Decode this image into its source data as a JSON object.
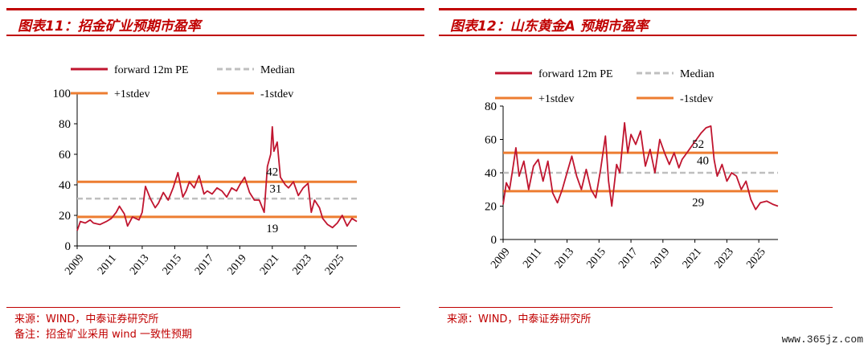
{
  "panels": [
    {
      "title": "图表11：招金矿业预期市盈率",
      "notes": [
        "来源：WIND，中泰证券研究所",
        "备注：招金矿业采用 wind 一致性预期"
      ],
      "legend": {
        "pe": "forward 12m PE",
        "median": "Median",
        "plus": "+1stdev",
        "minus": "-1stdev"
      },
      "colors": {
        "pe": "#c0152f",
        "median": "#bfbfbf",
        "band": "#ed7d31"
      }
    },
    {
      "title": "图表12：山东黄金A 预期市盈率",
      "notes": [
        "来源：WIND，中泰证券研究所"
      ],
      "legend": {
        "pe": "forward 12m PE",
        "median": "Median",
        "plus": "+1stdev",
        "minus": "-1stdev"
      },
      "colors": {
        "pe": "#c0152f",
        "median": "#bfbfbf",
        "band": "#ed7d31"
      }
    }
  ],
  "watermark": "www.365jz.com",
  "chart_data": [
    {
      "type": "line",
      "title": "图表11：招金矿业预期市盈率",
      "xlim": [
        2009,
        2026.2
      ],
      "ylim": [
        0,
        100
      ],
      "yticks": [
        0,
        20,
        40,
        60,
        80,
        100
      ],
      "xticks": [
        "2009",
        "2011",
        "2013",
        "2015",
        "2017",
        "2019",
        "2021",
        "2023",
        "2025"
      ],
      "series": [
        {
          "name": "forward 12m PE",
          "x": [
            2009.0,
            2009.2,
            2009.5,
            2009.8,
            2010.0,
            2010.4,
            2010.8,
            2011.1,
            2011.4,
            2011.6,
            2011.9,
            2012.1,
            2012.4,
            2012.8,
            2013.0,
            2013.2,
            2013.5,
            2013.8,
            2014.0,
            2014.3,
            2014.6,
            2014.9,
            2015.2,
            2015.5,
            2015.7,
            2015.9,
            2016.2,
            2016.5,
            2016.8,
            2017.0,
            2017.3,
            2017.6,
            2017.9,
            2018.2,
            2018.5,
            2018.8,
            2019.0,
            2019.3,
            2019.6,
            2019.9,
            2020.2,
            2020.5,
            2020.7,
            2020.9,
            2021.0,
            2021.1,
            2021.3,
            2021.5,
            2021.8,
            2022.0,
            2022.3,
            2022.6,
            2022.9,
            2023.2,
            2023.4,
            2023.6,
            2023.9,
            2024.1,
            2024.4,
            2024.7,
            2025.0,
            2025.3,
            2025.6,
            2025.9,
            2026.2
          ],
          "y": [
            10,
            16,
            15,
            17,
            15,
            14,
            16,
            18,
            22,
            26,
            21,
            13,
            19,
            17,
            22,
            39,
            31,
            25,
            28,
            35,
            30,
            38,
            48,
            32,
            36,
            42,
            38,
            46,
            34,
            36,
            34,
            38,
            36,
            32,
            38,
            36,
            40,
            45,
            35,
            30,
            30,
            22,
            52,
            60,
            78,
            62,
            68,
            45,
            40,
            38,
            42,
            33,
            38,
            41,
            22,
            30,
            25,
            18,
            14,
            12,
            15,
            20,
            13,
            18,
            16
          ]
        },
        {
          "name": "Median",
          "x": [
            2009,
            2026.2
          ],
          "y": [
            31,
            31
          ]
        },
        {
          "name": "+1stdev",
          "x": [
            2009,
            2026.2
          ],
          "y": [
            42,
            42
          ]
        },
        {
          "name": "-1stdev",
          "x": [
            2009,
            2026.2
          ],
          "y": [
            19,
            19
          ]
        }
      ],
      "labels": [
        {
          "text": "42",
          "x": 2021.0,
          "y": 46
        },
        {
          "text": "31",
          "x": 2021.2,
          "y": 35
        },
        {
          "text": "19",
          "x": 2021.0,
          "y": 9
        }
      ]
    },
    {
      "type": "line",
      "title": "图表12：山东黄金A 预期市盈率",
      "xlim": [
        2009,
        2026.2
      ],
      "ylim": [
        0,
        80
      ],
      "yticks": [
        0,
        20,
        40,
        60,
        80
      ],
      "xticks": [
        "2009",
        "2011",
        "2013",
        "2015",
        "2017",
        "2019",
        "2021",
        "2023",
        "2025"
      ],
      "series": [
        {
          "name": "forward 12m PE",
          "x": [
            2009.0,
            2009.2,
            2009.4,
            2009.6,
            2009.8,
            2010.0,
            2010.3,
            2010.6,
            2010.9,
            2011.2,
            2011.5,
            2011.8,
            2012.1,
            2012.4,
            2012.7,
            2013.0,
            2013.3,
            2013.6,
            2013.9,
            2014.2,
            2014.5,
            2014.8,
            2015.1,
            2015.4,
            2015.6,
            2015.8,
            2016.1,
            2016.3,
            2016.6,
            2016.8,
            2017.0,
            2017.3,
            2017.6,
            2017.9,
            2018.2,
            2018.5,
            2018.8,
            2019.1,
            2019.4,
            2019.7,
            2020.0,
            2020.2,
            2020.5,
            2020.8,
            2021.1,
            2021.4,
            2021.7,
            2022.0,
            2022.2,
            2022.4,
            2022.7,
            2023.0,
            2023.3,
            2023.6,
            2023.9,
            2024.2,
            2024.5,
            2024.8,
            2025.1,
            2025.5,
            2025.9,
            2026.2
          ],
          "y": [
            21,
            34,
            30,
            42,
            55,
            38,
            47,
            30,
            44,
            48,
            35,
            47,
            28,
            22,
            30,
            40,
            50,
            38,
            30,
            42,
            30,
            25,
            42,
            62,
            35,
            20,
            45,
            40,
            70,
            52,
            63,
            57,
            65,
            44,
            54,
            40,
            60,
            52,
            45,
            52,
            43,
            48,
            52,
            56,
            60,
            64,
            67,
            68,
            48,
            38,
            45,
            35,
            40,
            38,
            30,
            35,
            24,
            18,
            22,
            23,
            21,
            20
          ]
        },
        {
          "name": "Median",
          "x": [
            2009,
            2026.2
          ],
          "y": [
            40,
            40
          ]
        },
        {
          "name": "+1stdev",
          "x": [
            2009,
            2026.2
          ],
          "y": [
            52,
            52
          ]
        },
        {
          "name": "-1stdev",
          "x": [
            2009,
            2026.2
          ],
          "y": [
            29,
            29
          ]
        }
      ],
      "labels": [
        {
          "text": "52",
          "x": 2021.2,
          "y": 55
        },
        {
          "text": "40",
          "x": 2021.5,
          "y": 45
        },
        {
          "text": "29",
          "x": 2021.2,
          "y": 20
        }
      ]
    }
  ]
}
